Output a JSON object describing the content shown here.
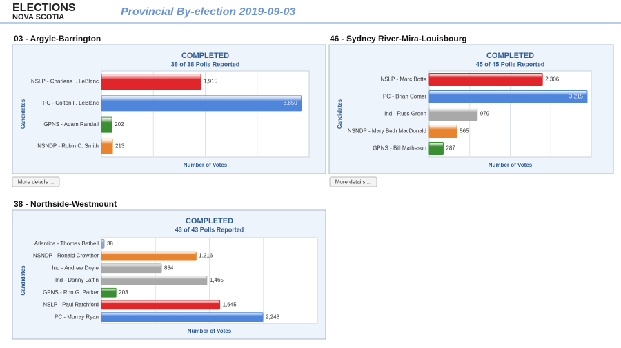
{
  "header": {
    "logo_line1": "ELECTIONS",
    "logo_line2": "NOVA SCOTIA",
    "title": "Provincial By-election 2019-09-03"
  },
  "chart_data": [
    {
      "type": "bar",
      "title": "03 - Argyle-Barrington",
      "status": "COMPLETED",
      "subtitle": "38 of 38 Polls Reported",
      "y_label": "Candidates",
      "x_label": "Number of Votes",
      "categories": [
        "NSLP - Charlene I. LeBlanc",
        "PC - Colton F. LeBlanc",
        "GPNS - Adam Randall",
        "NSNDP - Robin C. Smith"
      ],
      "values": [
        1915,
        3850,
        202,
        213
      ],
      "value_labels": [
        "1,915",
        "3,850",
        "202",
        "213"
      ],
      "colors": [
        "#e0262b",
        "#4f86dc",
        "#3b8f32",
        "#e8832e"
      ],
      "xlim": [
        0,
        4000
      ],
      "button": "More details ..."
    },
    {
      "type": "bar",
      "title": "46 - Sydney River-Mira-Louisbourg",
      "status": "COMPLETED",
      "subtitle": "45 of 45 Polls Reported",
      "y_label": "Candidates",
      "x_label": "Number of Votes",
      "categories": [
        "NSLP - Marc Botte",
        "PC - Brian Comer",
        "Ind - Russ Green",
        "NSNDP - Mary Beth MacDonald",
        "GPNS - Bill Matheson"
      ],
      "values": [
        2306,
        3215,
        979,
        565,
        287
      ],
      "value_labels": [
        "2,306",
        "3,215",
        "979",
        "565",
        "287"
      ],
      "colors": [
        "#e0262b",
        "#4f86dc",
        "#a9a9a9",
        "#e8832e",
        "#3b8f32"
      ],
      "xlim": [
        0,
        3300
      ],
      "button": "More details ..."
    },
    {
      "type": "bar",
      "title": "38 - Northside-Westmount",
      "status": "COMPLETED",
      "subtitle": "43 of 43 Polls Reported",
      "y_label": "Candidates",
      "x_label": "Number of Votes",
      "categories": [
        "Atlantica - Thomas Bethell",
        "NSNDP - Ronald Crowther",
        "Ind - Andrew Doyle",
        "Ind - Danny Laffin",
        "GPNS - Ron G. Parker",
        "NSLP - Paul Ratchford",
        "PC - Murray Ryan"
      ],
      "values": [
        38,
        1316,
        834,
        1465,
        203,
        1645,
        2243
      ],
      "value_labels": [
        "38",
        "1,316",
        "834",
        "1,465",
        "203",
        "1,645",
        "2,243"
      ],
      "colors": [
        "#8fa3c8",
        "#e8832e",
        "#a9a9a9",
        "#a9a9a9",
        "#3b8f32",
        "#e0262b",
        "#4f86dc"
      ],
      "xlim": [
        0,
        3000
      ]
    }
  ]
}
